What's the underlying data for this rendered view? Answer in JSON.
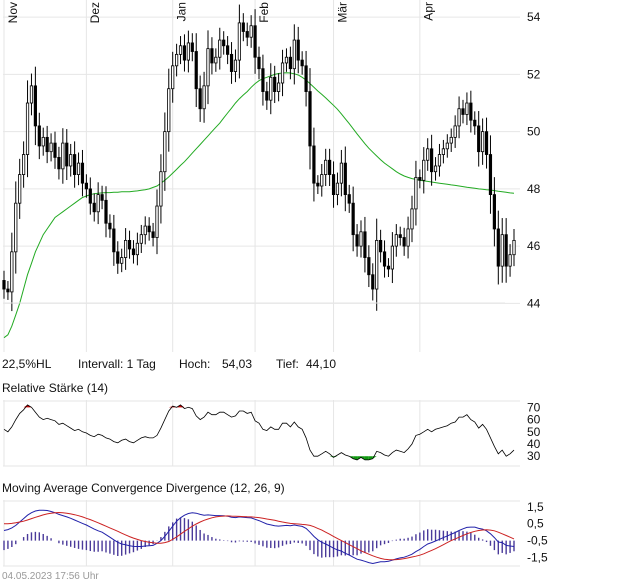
{
  "main_chart": {
    "months": [
      {
        "label": "Nov",
        "index": 0
      },
      {
        "label": "Dez",
        "index": 21
      },
      {
        "label": "Jan",
        "index": 43
      },
      {
        "label": "Feb",
        "index": 64
      },
      {
        "label": "Mär",
        "index": 84
      },
      {
        "label": "Apr",
        "index": 106
      }
    ],
    "y_ticks": [
      44,
      46,
      48,
      50,
      52,
      54
    ],
    "ylim": [
      42.3,
      54.6
    ],
    "info": {
      "range": "22,5%HL",
      "interval": "Intervall: 1 Tag",
      "high_label": "Hoch:",
      "high_value": "54,03",
      "low_label": "Tief:",
      "low_value": "44,10"
    }
  },
  "rsi_panel": {
    "title": "Relative Stärke (14)",
    "y_ticks": [
      30,
      40,
      50,
      60,
      70
    ],
    "ylim": [
      22,
      76
    ]
  },
  "macd_panel": {
    "title": "Moving Average Convergence Divergence (12, 26, 9)",
    "y_tick_labels": [
      "1,5",
      "0,5",
      "-0,5",
      "-1,5"
    ],
    "y_ticks": [
      1.5,
      0.5,
      -0.5,
      -1.5
    ],
    "ylim": [
      -2.0,
      1.9
    ]
  },
  "footer": {
    "timestamp": "04.05.2023 17:56 Uhr"
  },
  "colors": {
    "candle": "#000000",
    "ma_line": "#22aa22",
    "rsi_line": "#000000",
    "rsi_overbought": "#cc0000",
    "rsi_oversold": "#119911",
    "macd_line": "#2222aa",
    "signal_line": "#cc2222",
    "histogram": "#4a3a9a",
    "grid": "#e6e6e6"
  },
  "chart_data": [
    {
      "type": "candlestick",
      "title": "",
      "x_labels": [
        "Nov",
        "Dez",
        "Jan",
        "Feb",
        "Mär",
        "Apr"
      ],
      "ylim": [
        42.3,
        54.6
      ],
      "close": [
        44.5,
        44.4,
        45.8,
        47.5,
        48.5,
        49.2,
        51.0,
        51.6,
        50.2,
        49.5,
        49.8,
        49.3,
        49.6,
        49.1,
        48.7,
        49.6,
        48.8,
        49.2,
        48.5,
        48.9,
        48.2,
        48.0,
        47.5,
        47.2,
        47.8,
        47.6,
        46.8,
        46.6,
        45.8,
        45.4,
        45.6,
        46.2,
        45.9,
        45.7,
        46.1,
        46.4,
        46.7,
        46.5,
        46.3,
        47.4,
        48.6,
        50.0,
        51.5,
        52.3,
        52.7,
        53.0,
        52.5,
        53.1,
        52.8,
        51.5,
        50.8,
        51.6,
        52.9,
        52.4,
        52.6,
        53.2,
        53.0,
        52.7,
        52.1,
        52.5,
        53.8,
        53.5,
        53.3,
        53.7,
        52.6,
        52.2,
        51.4,
        51.1,
        51.9,
        51.4,
        51.7,
        52.4,
        52.6,
        52.2,
        53.2,
        52.5,
        52.3,
        51.4,
        49.5,
        48.2,
        48.1,
        48.5,
        49.0,
        48.5,
        47.8,
        48.2,
        48.9,
        47.8,
        47.5,
        46.4,
        46.0,
        46.5,
        45.6,
        45.0,
        44.5,
        46.2,
        45.8,
        45.3,
        45.2,
        46.0,
        46.4,
        46.3,
        46.0,
        46.6,
        47.3,
        48.4,
        48.3,
        49.0,
        49.4,
        48.6,
        48.8,
        49.2,
        49.4,
        49.6,
        49.8,
        50.2,
        50.8,
        50.6,
        51.0,
        50.4,
        50.2,
        49.3,
        50.0,
        49.2,
        47.8,
        46.6,
        45.3,
        46.4,
        45.3,
        45.7,
        46.2
      ],
      "ma_line": [
        42.8,
        42.9,
        43.2,
        43.6,
        44.0,
        44.5,
        45.0,
        45.4,
        45.8,
        46.1,
        46.4,
        46.6,
        46.8,
        47.0,
        47.1,
        47.2,
        47.3,
        47.4,
        47.5,
        47.6,
        47.7,
        47.75,
        47.8,
        47.83,
        47.85,
        47.86,
        47.87,
        47.87,
        47.88,
        47.88,
        47.9,
        47.9,
        47.9,
        47.92,
        47.93,
        47.95,
        47.97,
        48.0,
        48.05,
        48.1,
        48.2,
        48.3,
        48.42,
        48.55,
        48.68,
        48.82,
        48.95,
        49.1,
        49.25,
        49.4,
        49.55,
        49.7,
        49.85,
        50.0,
        50.15,
        50.3,
        50.48,
        50.65,
        50.82,
        51.0,
        51.15,
        51.28,
        51.4,
        51.55,
        51.68,
        51.78,
        51.85,
        51.9,
        51.95,
        52.0,
        52.03,
        52.05,
        52.06,
        52.05,
        52.02,
        51.98,
        51.9,
        51.8,
        51.68,
        51.55,
        51.42,
        51.3,
        51.18,
        51.05,
        50.92,
        50.78,
        50.62,
        50.45,
        50.28,
        50.1,
        49.92,
        49.75,
        49.58,
        49.42,
        49.28,
        49.15,
        49.02,
        48.9,
        48.8,
        48.7,
        48.6,
        48.52,
        48.45,
        48.4,
        48.36,
        48.33,
        48.3,
        48.28,
        48.26,
        48.24,
        48.22,
        48.2,
        48.18,
        48.16,
        48.14,
        48.12,
        48.1,
        48.08,
        48.06,
        48.04,
        48.02,
        48.0,
        47.99,
        47.97,
        47.96,
        47.94,
        47.92,
        47.9,
        47.88,
        47.86,
        47.85
      ],
      "gaps_after": [
        123
      ]
    },
    {
      "type": "line",
      "title": "Relative Stärke (14)",
      "y_ticks": [
        30,
        40,
        50,
        60,
        70
      ],
      "ylim": [
        22,
        76
      ],
      "values": [
        52,
        50,
        54,
        60,
        65,
        68,
        72,
        70,
        66,
        62,
        60,
        61,
        60,
        59,
        56,
        57,
        55,
        53,
        51,
        52,
        50,
        49,
        47,
        46,
        48,
        47,
        45,
        44,
        42,
        41,
        43,
        44,
        42,
        41,
        43,
        45,
        46,
        45,
        45,
        47,
        53,
        60,
        67,
        71,
        70,
        72,
        69,
        70,
        69,
        63,
        60,
        62,
        66,
        64,
        64,
        66,
        66,
        64,
        62,
        63,
        67,
        67,
        65,
        66,
        59,
        57,
        52,
        51,
        54,
        52,
        52,
        57,
        57,
        54,
        58,
        54,
        52,
        45,
        35,
        30,
        30,
        32,
        34,
        32,
        29,
        31,
        33,
        31,
        30,
        28,
        27,
        29,
        27,
        27,
        28,
        34,
        33,
        31,
        30,
        33,
        35,
        34,
        33,
        36,
        40,
        47,
        48,
        50,
        52,
        50,
        52,
        53,
        54,
        55,
        57,
        58,
        62,
        62,
        64,
        60,
        58,
        53,
        56,
        52,
        45,
        38,
        32,
        35,
        30,
        32,
        35
      ],
      "overbought": 70,
      "oversold": 30
    },
    {
      "type": "line",
      "title": "Moving Average Convergence Divergence (12, 26, 9)",
      "ylim": [
        -2.0,
        1.9
      ],
      "series": [
        {
          "values": [
            0.1,
            0.15,
            0.25,
            0.4,
            0.6,
            0.8,
            1.0,
            1.15,
            1.25,
            1.3,
            1.3,
            1.28,
            1.22,
            1.15,
            1.05,
            0.98,
            0.9,
            0.82,
            0.72,
            0.62,
            0.52,
            0.42,
            0.3,
            0.18,
            0.08,
            0.0,
            -0.15,
            -0.3,
            -0.45,
            -0.6,
            -0.7,
            -0.75,
            -0.8,
            -0.84,
            -0.85,
            -0.85,
            -0.82,
            -0.8,
            -0.78,
            -0.66,
            -0.5,
            -0.25,
            0.05,
            0.35,
            0.65,
            0.85,
            1.0,
            1.1,
            1.15,
            1.12,
            1.05,
            1.0,
            1.02,
            1.0,
            0.98,
            0.98,
            0.97,
            0.94,
            0.88,
            0.86,
            0.9,
            0.88,
            0.86,
            0.84,
            0.76,
            0.68,
            0.58,
            0.48,
            0.43,
            0.38,
            0.36,
            0.38,
            0.4,
            0.38,
            0.42,
            0.38,
            0.34,
            0.22,
            0.0,
            -0.25,
            -0.45,
            -0.6,
            -0.7,
            -0.82,
            -0.95,
            -1.05,
            -1.12,
            -1.25,
            -1.35,
            -1.48,
            -1.6,
            -1.65,
            -1.72,
            -1.8,
            -1.85,
            -1.8,
            -1.75,
            -1.75,
            -1.72,
            -1.65,
            -1.58,
            -1.52,
            -1.48,
            -1.4,
            -1.3,
            -1.15,
            -1.02,
            -0.85,
            -0.7,
            -0.62,
            -0.52,
            -0.42,
            -0.32,
            -0.22,
            -0.12,
            -0.02,
            0.1,
            0.2,
            0.28,
            0.3,
            0.3,
            0.22,
            0.18,
            0.08,
            -0.1,
            -0.32,
            -0.58,
            -0.62,
            -0.78,
            -0.82,
            -0.85
          ]
        },
        {
          "values": [
            0.5,
            0.5,
            0.52,
            0.55,
            0.6,
            0.65,
            0.72,
            0.8,
            0.88,
            0.95,
            1.02,
            1.08,
            1.12,
            1.15,
            1.16,
            1.15,
            1.12,
            1.08,
            1.03,
            0.97,
            0.9,
            0.82,
            0.74,
            0.65,
            0.55,
            0.45,
            0.35,
            0.25,
            0.15,
            0.05,
            -0.06,
            -0.16,
            -0.26,
            -0.35,
            -0.43,
            -0.5,
            -0.55,
            -0.6,
            -0.63,
            -0.65,
            -0.65,
            -0.62,
            -0.55,
            -0.42,
            -0.28,
            -0.12,
            0.05,
            0.2,
            0.35,
            0.48,
            0.6,
            0.7,
            0.78,
            0.85,
            0.9,
            0.93,
            0.95,
            0.96,
            0.95,
            0.94,
            0.93,
            0.92,
            0.91,
            0.9,
            0.88,
            0.86,
            0.82,
            0.78,
            0.74,
            0.7,
            0.65,
            0.6,
            0.56,
            0.52,
            0.5,
            0.48,
            0.46,
            0.44,
            0.4,
            0.32,
            0.22,
            0.12,
            0.0,
            -0.12,
            -0.25,
            -0.38,
            -0.5,
            -0.62,
            -0.74,
            -0.86,
            -0.98,
            -1.1,
            -1.2,
            -1.3,
            -1.4,
            -1.48,
            -1.55,
            -1.6,
            -1.62,
            -1.63,
            -1.62,
            -1.6,
            -1.56,
            -1.52,
            -1.47,
            -1.42,
            -1.36,
            -1.28,
            -1.18,
            -1.08,
            -0.98,
            -0.86,
            -0.74,
            -0.62,
            -0.5,
            -0.4,
            -0.3,
            -0.2,
            -0.1,
            -0.02,
            0.05,
            0.1,
            0.13,
            0.14,
            0.12,
            0.08,
            0.0,
            -0.1,
            -0.2,
            -0.3,
            -0.4
          ]
        }
      ]
    }
  ]
}
